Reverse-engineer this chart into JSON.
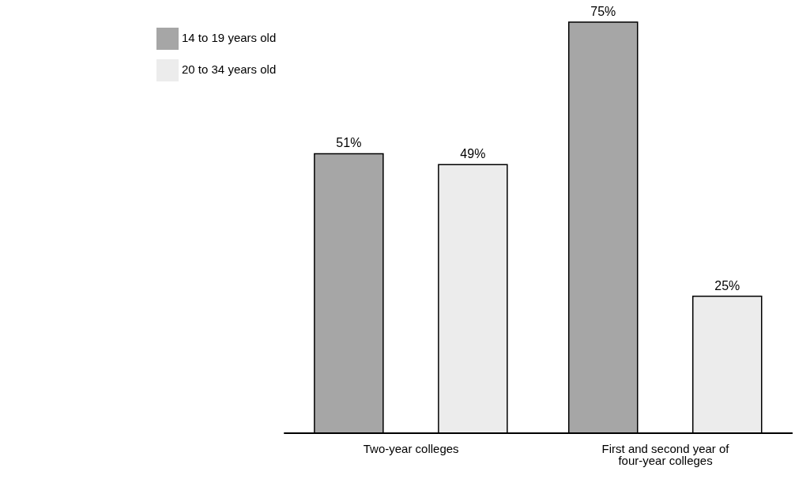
{
  "chart_data": {
    "type": "bar",
    "categories": [
      "Two-year colleges",
      "First and second year of four-year colleges"
    ],
    "series": [
      {
        "name": "14 to 19 years old",
        "color": "#a6a6a6",
        "values": [
          51,
          75
        ],
        "value_labels": [
          "51%",
          "75%"
        ]
      },
      {
        "name": "20 to 34 years old",
        "color": "#ececec",
        "values": [
          49,
          25
        ],
        "value_labels": [
          "49%",
          "25%"
        ]
      }
    ],
    "legend": "top left",
    "grid": false
  }
}
